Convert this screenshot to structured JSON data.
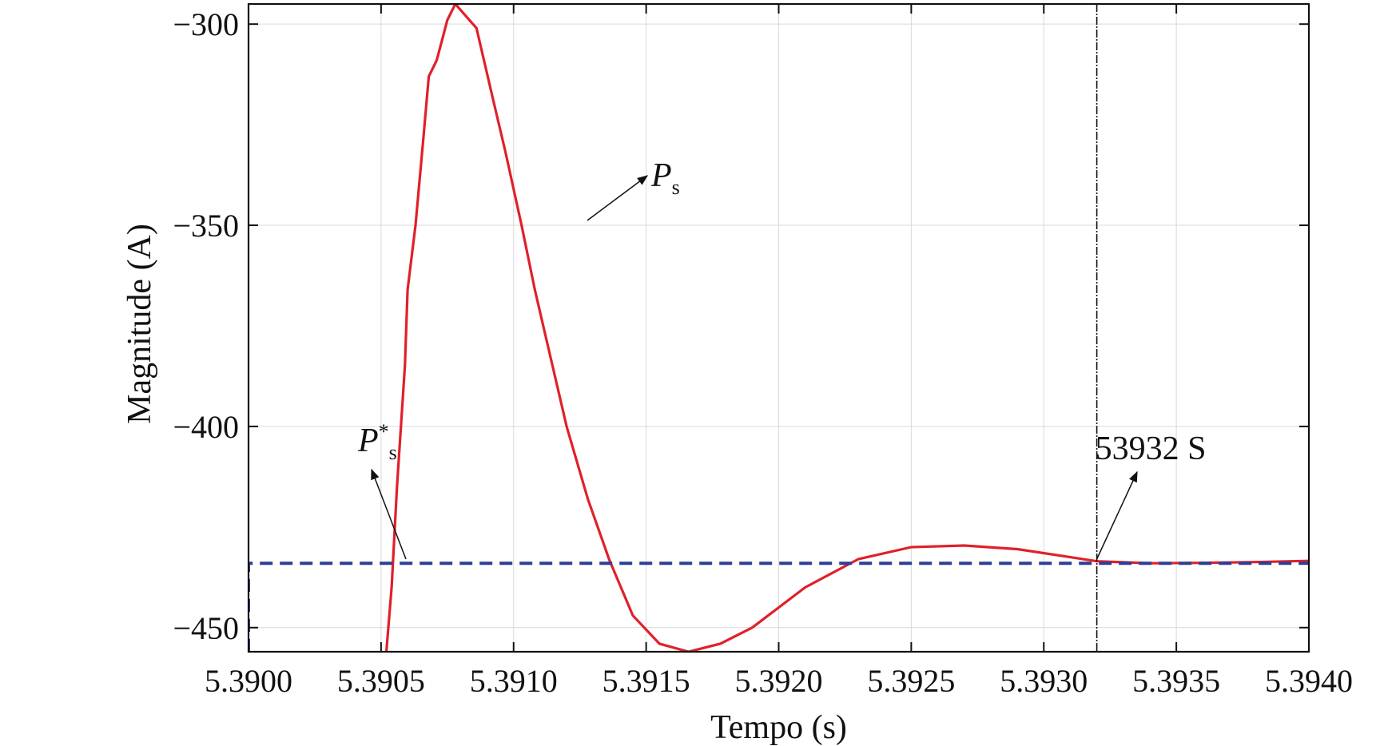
{
  "chart_data": {
    "type": "line",
    "title": "",
    "xlabel": "Tempo (s)",
    "ylabel": "Magnitude (A)",
    "xlim": [
      5.39,
      5.394
    ],
    "ylim": [
      -456,
      -295
    ],
    "grid": true,
    "x_ticks": [
      {
        "value": 5.39,
        "label": "5.3900"
      },
      {
        "value": 5.3905,
        "label": "5.3905"
      },
      {
        "value": 5.391,
        "label": "5.3910"
      },
      {
        "value": 5.3915,
        "label": "5.3915"
      },
      {
        "value": 5.392,
        "label": "5.3920"
      },
      {
        "value": 5.3925,
        "label": "5.3925"
      },
      {
        "value": 5.393,
        "label": "5.3930"
      },
      {
        "value": 5.3935,
        "label": "5.3935"
      },
      {
        "value": 5.394,
        "label": "5.3940"
      }
    ],
    "y_ticks": [
      {
        "value": -300,
        "label": "−300"
      },
      {
        "value": -350,
        "label": "−350"
      },
      {
        "value": -400,
        "label": "−400"
      },
      {
        "value": -450,
        "label": "−450"
      }
    ],
    "series": [
      {
        "name": "P",
        "name_sub": "s",
        "color": "#e0202a",
        "style": "solid",
        "points": [
          [
            5.39052,
            -456
          ],
          [
            5.39054,
            -440
          ],
          [
            5.39056,
            -415
          ],
          [
            5.39059,
            -385
          ],
          [
            5.3906,
            -366
          ],
          [
            5.39063,
            -350
          ],
          [
            5.39066,
            -328
          ],
          [
            5.39068,
            -313
          ],
          [
            5.39071,
            -309
          ],
          [
            5.39073,
            -304
          ],
          [
            5.39075,
            -299
          ],
          [
            5.39078,
            -295
          ],
          [
            5.39082,
            -298
          ],
          [
            5.39086,
            -301
          ],
          [
            5.39092,
            -318
          ],
          [
            5.39097,
            -332
          ],
          [
            5.39103,
            -350
          ],
          [
            5.39108,
            -366
          ],
          [
            5.39114,
            -383
          ],
          [
            5.3912,
            -400
          ],
          [
            5.39128,
            -418
          ],
          [
            5.39136,
            -433
          ],
          [
            5.39145,
            -447
          ],
          [
            5.39155,
            -454
          ],
          [
            5.39166,
            -456
          ],
          [
            5.39178,
            -454
          ],
          [
            5.3919,
            -450
          ],
          [
            5.3921,
            -440
          ],
          [
            5.3923,
            -433
          ],
          [
            5.3925,
            -430
          ],
          [
            5.3927,
            -429.6
          ],
          [
            5.3929,
            -430.5
          ],
          [
            5.3931,
            -432.5
          ],
          [
            5.3932,
            -433.5
          ],
          [
            5.3934,
            -434
          ],
          [
            5.3936,
            -433.9
          ],
          [
            5.3938,
            -433.7
          ],
          [
            5.394,
            -433.4
          ]
        ]
      },
      {
        "name": "P",
        "name_sub": "s",
        "name_sup": "*",
        "color": "#2c3f97",
        "style": "dashed",
        "points": [
          [
            5.39,
            -456
          ],
          [
            5.39,
            -434
          ],
          [
            5.394,
            -434
          ]
        ]
      }
    ],
    "vertical_marker": {
      "x": 5.3932,
      "color": "#111111"
    },
    "annotations": [
      {
        "text": "P",
        "sub": "s",
        "target_series": 0
      },
      {
        "text": "P",
        "sub": "s",
        "sup": "*",
        "target_series": 1
      },
      {
        "text": "53932 S",
        "target": "vertical_marker"
      }
    ]
  }
}
